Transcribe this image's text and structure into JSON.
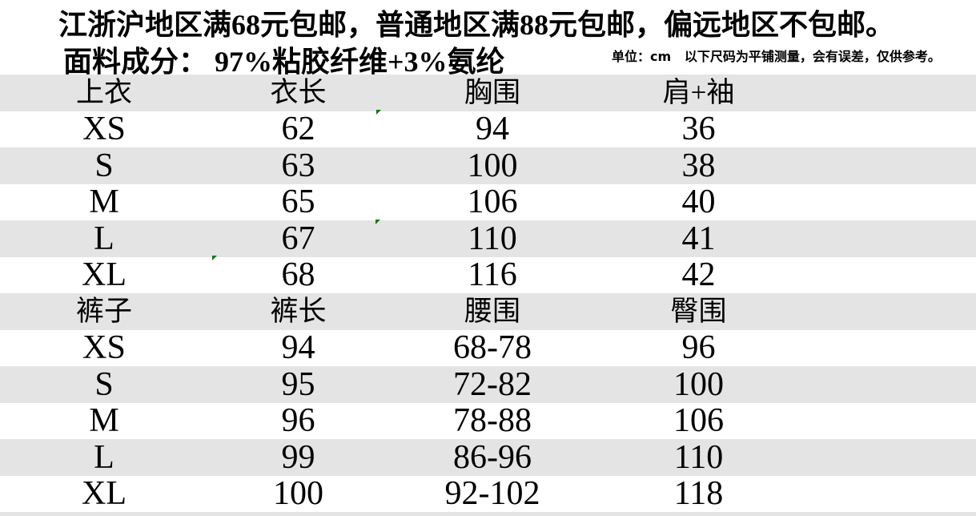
{
  "header": {
    "shipping_notice": "江浙沪地区满68元包邮，普通地区满88元包邮，偏远地区不包邮。",
    "fabric_line": "面料成分： 97%粘胶纤维+3%氨纶",
    "unit_note": "单位：cm   以下尺码为平铺测量，会有误差，仅供参考。"
  },
  "table": {
    "rows": [
      {
        "type": "header",
        "cells": [
          "上衣",
          "衣长",
          "胸围",
          "肩+袖"
        ]
      },
      {
        "type": "data",
        "cells": [
          "XS",
          "62",
          "94",
          "36"
        ]
      },
      {
        "type": "data",
        "cells": [
          "S",
          "63",
          "100",
          "38"
        ]
      },
      {
        "type": "data",
        "cells": [
          "M",
          "65",
          "106",
          "40"
        ]
      },
      {
        "type": "data",
        "cells": [
          "L",
          "67",
          "110",
          "41"
        ]
      },
      {
        "type": "data",
        "cells": [
          "XL",
          "68",
          "116",
          "42"
        ]
      },
      {
        "type": "header",
        "cells": [
          "裤子",
          "裤长",
          "腰围",
          "臀围"
        ]
      },
      {
        "type": "data",
        "cells": [
          "XS",
          "94",
          "68-78",
          "96"
        ]
      },
      {
        "type": "data",
        "cells": [
          "S",
          "95",
          "72-82",
          "100"
        ]
      },
      {
        "type": "data",
        "cells": [
          "M",
          "96",
          "78-88",
          "106"
        ]
      },
      {
        "type": "data",
        "cells": [
          "L",
          "99",
          "86-96",
          "110"
        ]
      },
      {
        "type": "data",
        "cells": [
          "XL",
          "100",
          "92-102",
          "118"
        ]
      }
    ]
  },
  "colors": {
    "row_shade": "#e4e4e4",
    "background": "#ffffff",
    "text": "#000000",
    "artifact_green": "#067d06"
  }
}
